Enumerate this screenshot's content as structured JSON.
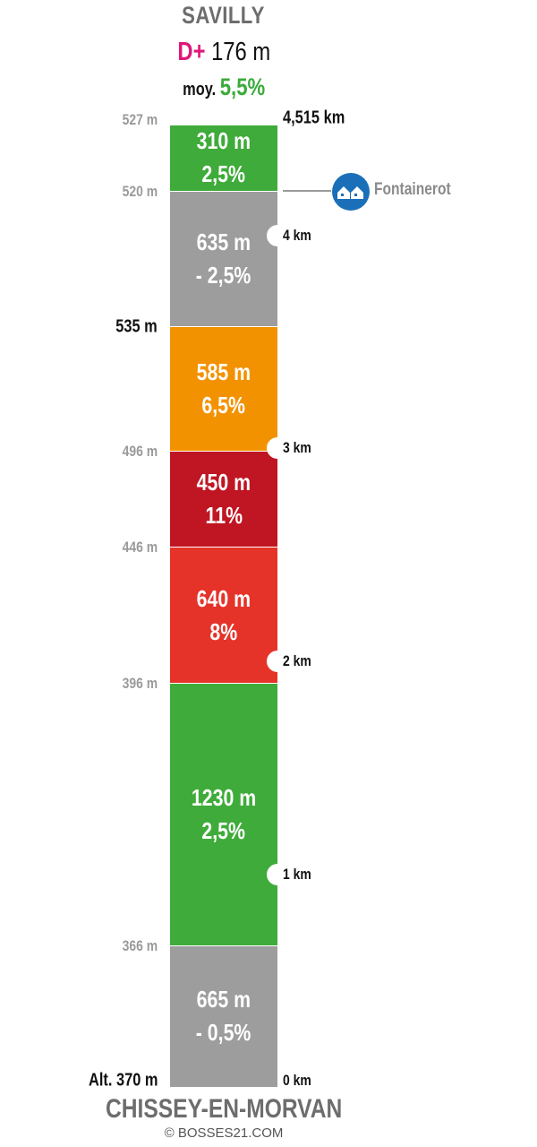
{
  "summit": "SAVILLY",
  "start": "CHISSEY-EN-MORVAN",
  "elevation_gain_label": "D+",
  "elevation_gain": "176 m",
  "average_label": "moy.",
  "average_grade": "5,5%",
  "copyright": "© BOSSES21.COM",
  "colors": {
    "green": "#3fab3a",
    "grey": "#9d9d9d",
    "orange": "#f39200",
    "dark_red": "#c01522",
    "red": "#e5332a",
    "accent_pink": "#e0177b",
    "avg_green": "#3aab3a",
    "poi_blue": "#1a6fb8"
  },
  "segments": [
    {
      "length": "665 m",
      "grade": "- 0,5%",
      "color": "grey"
    },
    {
      "length": "1230 m",
      "grade": "2,5%",
      "color": "green"
    },
    {
      "length": "640 m",
      "grade": "8%",
      "color": "red"
    },
    {
      "length": "450 m",
      "grade": "11%",
      "color": "dark_red"
    },
    {
      "length": "585 m",
      "grade": "6,5%",
      "color": "orange"
    },
    {
      "length": "635 m",
      "grade": "- 2,5%",
      "color": "grey"
    },
    {
      "length": "310 m",
      "grade": "2,5%",
      "color": "green"
    }
  ],
  "altitudes": [
    "Alt. 370 m",
    "366 m",
    "396 m",
    "446 m",
    "496 m",
    "535 m",
    "520 m",
    "527 m"
  ],
  "km_markers": [
    "0 km",
    "1 km",
    "2 km",
    "3 km",
    "4 km",
    "4,515 km"
  ],
  "poi": {
    "name": "Fontainerot",
    "icon": "houses-icon"
  }
}
